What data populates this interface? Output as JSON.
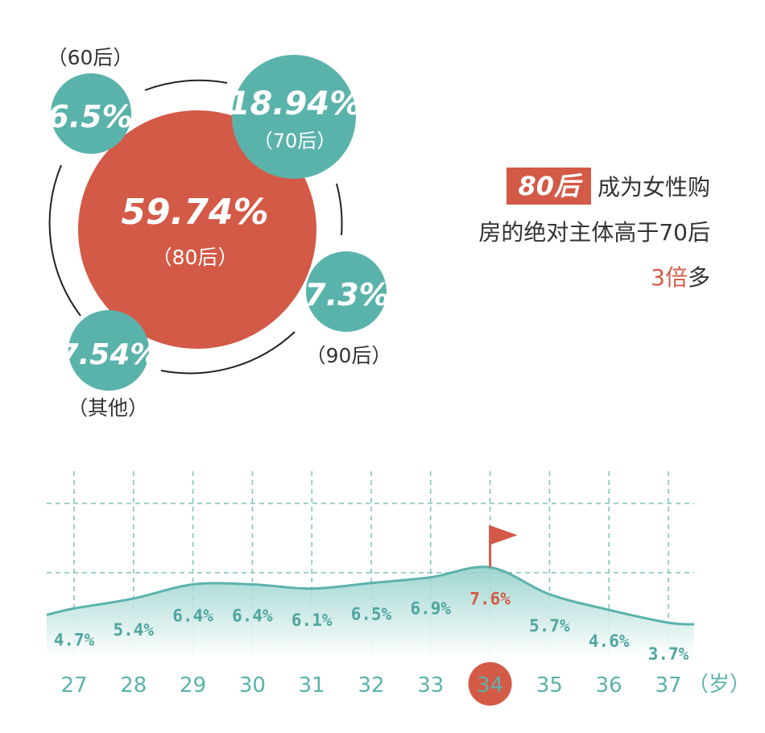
{
  "colors": {
    "accent_red": "#d35a47",
    "teal": "#5ab3ab",
    "teal_dark": "#4ea69f",
    "text": "#333333"
  },
  "bubbles": [
    {
      "value": "59.74%",
      "label": "（80后）"
    },
    {
      "value": "18.94%",
      "label": "（70后）"
    },
    {
      "value": "6.5%",
      "label": "（60后）"
    },
    {
      "value": "7.3%",
      "label": "（90后）"
    },
    {
      "value": "7.54%",
      "label": "（其他）"
    }
  ],
  "headline": {
    "tag": "80后",
    "line1": "成为女性购",
    "line2": "房的绝对主体高于70后",
    "highlight": "3倍",
    "suffix": "多"
  },
  "chart_data": {
    "type": "area",
    "x": [
      "27",
      "28",
      "29",
      "30",
      "31",
      "32",
      "33",
      "34",
      "35",
      "36",
      "37"
    ],
    "values": [
      4.7,
      5.4,
      6.4,
      6.4,
      6.1,
      6.5,
      6.9,
      7.6,
      5.7,
      4.6,
      3.7
    ],
    "labels": [
      "4.7%",
      "5.4%",
      "6.4%",
      "6.4%",
      "6.1%",
      "6.5%",
      "6.9%",
      "7.6%",
      "5.7%",
      "4.6%",
      "3.7%"
    ],
    "x_unit": "（岁）",
    "highlight_index": 7,
    "grid": true
  }
}
